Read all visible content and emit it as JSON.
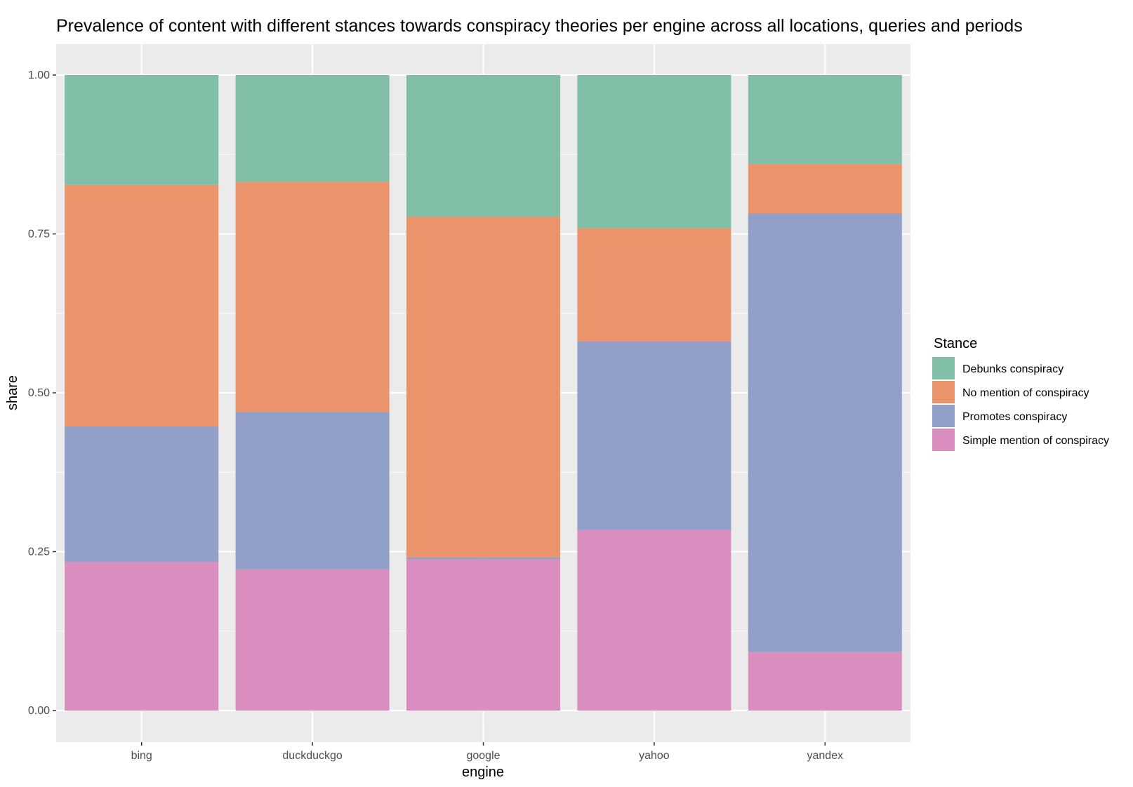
{
  "chart_data": {
    "type": "bar",
    "stacked": true,
    "title": "Prevalence of content with different stances towards conspiracy theories per engine across all locations, queries and periods",
    "xlabel": "engine",
    "ylabel": "share",
    "ylim": [
      0,
      1
    ],
    "y_ticks": [
      "0.00",
      "0.25",
      "0.50",
      "0.75",
      "1.00"
    ],
    "categories": [
      "bing",
      "duckduckgo",
      "google",
      "yahoo",
      "yandex"
    ],
    "legend": {
      "title": "Stance",
      "position": "right"
    },
    "series": [
      {
        "name": "Simple mention of conspiracy",
        "color": "#da8ec0",
        "values": [
          0.234,
          0.222,
          0.238,
          0.284,
          0.092
        ]
      },
      {
        "name": "Promotes conspiracy",
        "color": "#929fc8",
        "values": [
          0.213,
          0.248,
          0.003,
          0.297,
          0.69
        ]
      },
      {
        "name": "No mention of conspiracy",
        "color": "#eb946c",
        "values": [
          0.38,
          0.362,
          0.536,
          0.178,
          0.078
        ]
      },
      {
        "name": "Debunks conspiracy",
        "color": "#80bfa5",
        "values": [
          0.173,
          0.168,
          0.223,
          0.241,
          0.14
        ]
      }
    ],
    "legend_order": [
      "Debunks conspiracy",
      "No mention of conspiracy",
      "Promotes conspiracy",
      "Simple mention of conspiracy"
    ],
    "panel_background": "#ebebeb",
    "grid": true
  }
}
